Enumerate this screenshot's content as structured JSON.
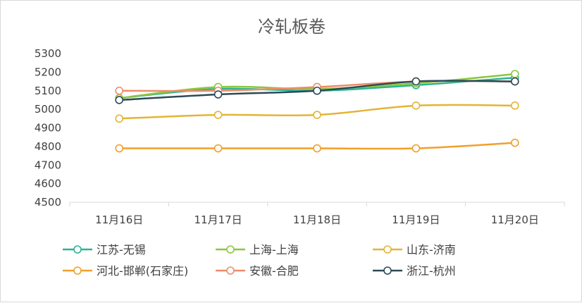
{
  "chart_data": {
    "type": "line",
    "title": "冷轧板卷",
    "categories": [
      "11月16日",
      "11月17日",
      "11月18日",
      "11月19日",
      "11月20日"
    ],
    "ylim": [
      4500,
      5300
    ],
    "yticks": [
      4500,
      4600,
      4700,
      4800,
      4900,
      5000,
      5100,
      5200,
      5300
    ],
    "grid": false,
    "legend_position": "bottom",
    "series": [
      {
        "name": "江苏-无锡",
        "color": "#2bb394",
        "values": [
          5060,
          5110,
          5100,
          5130,
          5170
        ]
      },
      {
        "name": "上海-上海",
        "color": "#8dc63f",
        "values": [
          5060,
          5120,
          5110,
          5140,
          5190
        ]
      },
      {
        "name": "山东-济南",
        "color": "#e3b535",
        "values": [
          4950,
          4970,
          4970,
          5020,
          5020
        ]
      },
      {
        "name": "河北-邯郸(石家庄)",
        "color": "#f0a02a",
        "values": [
          4790,
          4790,
          4790,
          4790,
          4820
        ]
      },
      {
        "name": "安徽-合肥",
        "color": "#ee8c68",
        "values": [
          5100,
          5100,
          5120,
          5150,
          5150
        ]
      },
      {
        "name": "浙江-杭州",
        "color": "#2c4a57",
        "values": [
          5050,
          5080,
          5100,
          5150,
          5150
        ]
      }
    ]
  }
}
